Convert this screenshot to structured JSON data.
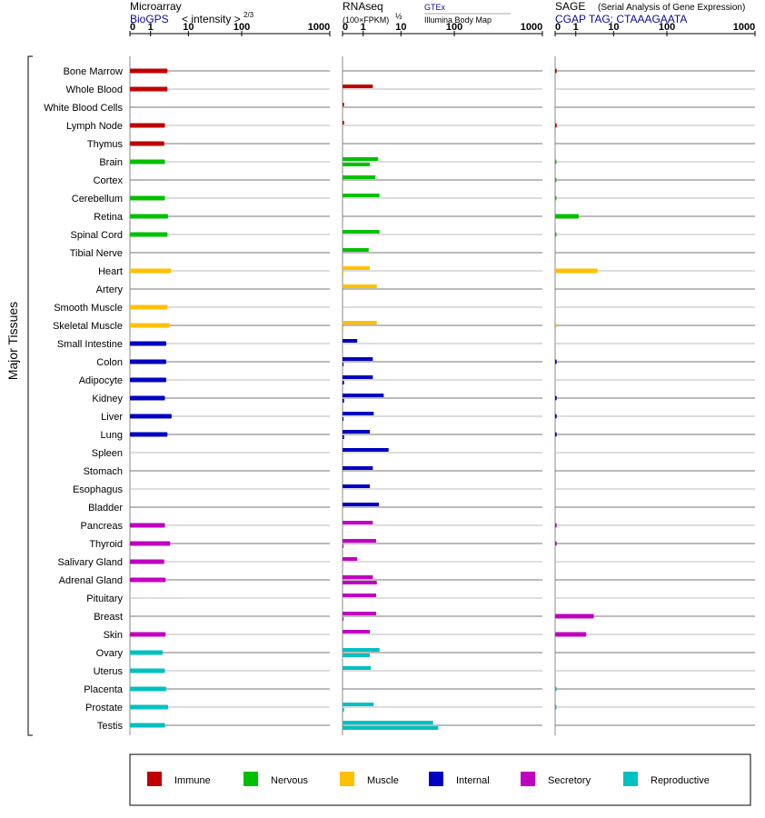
{
  "header": {
    "microarray": {
      "title": "Microarray",
      "source": "BioGPS",
      "scale_label": "< intensity >",
      "scale_exp": "2/3"
    },
    "rnaseq": {
      "title": "RNAseq",
      "scale_label": "(100×FPKM)",
      "scale_exp": "½",
      "source_1": "GTEx",
      "source_2": "Illumina Body Map"
    },
    "sage": {
      "title": "SAGE",
      "subtitle": "(Serial Analysis of Gene Expression)",
      "tag": "CGAP TAG: CTAAAGAATA"
    }
  },
  "axis_ticks": [
    "0",
    "1",
    "10",
    "100",
    "1000"
  ],
  "y_group_label": "Major Tissues",
  "legend": [
    {
      "name": "Immune",
      "color": "#c00000"
    },
    {
      "name": "Nervous",
      "color": "#00c000"
    },
    {
      "name": "Muscle",
      "color": "#ffc000"
    },
    {
      "name": "Internal",
      "color": "#0000c0"
    },
    {
      "name": "Secretory",
      "color": "#c000c0"
    },
    {
      "name": "Reproductive",
      "color": "#00c0c0"
    }
  ],
  "chart_data": {
    "type": "bar",
    "orientation": "horizontal",
    "categories": [
      "Bone Marrow",
      "Whole Blood",
      "White Blood Cells",
      "Lymph Node",
      "Thymus",
      "Brain",
      "Cortex",
      "Cerebellum",
      "Retina",
      "Spinal Cord",
      "Tibial Nerve",
      "Heart",
      "Artery",
      "Smooth Muscle",
      "Skeletal Muscle",
      "Small Intestine",
      "Colon",
      "Adipocyte",
      "Kidney",
      "Liver",
      "Lung",
      "Spleen",
      "Stomach",
      "Esophagus",
      "Bladder",
      "Pancreas",
      "Thyroid",
      "Salivary Gland",
      "Adrenal Gland",
      "Pituitary",
      "Breast",
      "Skin",
      "Ovary",
      "Uterus",
      "Placenta",
      "Prostate",
      "Testis"
    ],
    "category_groups": [
      "Immune",
      "Immune",
      "Immune",
      "Immune",
      "Immune",
      "Nervous",
      "Nervous",
      "Nervous",
      "Nervous",
      "Nervous",
      "Nervous",
      "Muscle",
      "Muscle",
      "Muscle",
      "Muscle",
      "Internal",
      "Internal",
      "Internal",
      "Internal",
      "Internal",
      "Internal",
      "Internal",
      "Internal",
      "Internal",
      "Internal",
      "Secretory",
      "Secretory",
      "Secretory",
      "Secretory",
      "Secretory",
      "Secretory",
      "Secretory",
      "Reproductive",
      "Reproductive",
      "Reproductive",
      "Reproductive",
      "Reproductive"
    ],
    "x_scale": "log",
    "xlim": [
      0,
      1000
    ],
    "panels": [
      {
        "name": "Microarray",
        "values": [
          2.8,
          2.8,
          null,
          2.4,
          2.3,
          2.4,
          null,
          2.4,
          2.9,
          2.8,
          null,
          3.5,
          null,
          2.8,
          3.2,
          2.6,
          2.6,
          2.6,
          2.4,
          3.6,
          2.8,
          null,
          null,
          null,
          null,
          2.4,
          3.3,
          2.3,
          2.5,
          null,
          null,
          2.5,
          2.1,
          2.4,
          2.6,
          2.9,
          2.4
        ]
      },
      {
        "name": "RNAseq GTEx",
        "values": [
          null,
          1.8,
          0.02,
          0.02,
          null,
          2.5,
          2.1,
          2.7,
          null,
          2.7,
          1.4,
          1.5,
          2.3,
          null,
          2.3,
          0.6,
          1.8,
          1.8,
          3.5,
          1.9,
          1.5,
          4.7,
          1.8,
          1.5,
          2.6,
          1.8,
          2.2,
          0.6,
          1.8,
          2.2,
          2.2,
          1.5,
          2.7,
          1.6,
          null,
          1.9,
          40
        ]
      },
      {
        "name": "RNAseq Illumina Body Map",
        "values": [
          null,
          null,
          null,
          null,
          null,
          1.5,
          null,
          null,
          null,
          null,
          null,
          0.01,
          null,
          null,
          0.01,
          null,
          0.01,
          0.02,
          0.02,
          0.01,
          0.02,
          null,
          null,
          null,
          null,
          null,
          0.01,
          null,
          2.3,
          null,
          0.01,
          null,
          1.5,
          null,
          null,
          0.02,
          50
        ]
      },
      {
        "name": "SAGE",
        "values": [
          0.02,
          null,
          null,
          0.02,
          null,
          0.01,
          0.01,
          0.01,
          1.2,
          0.01,
          null,
          3.8,
          null,
          null,
          0.005,
          null,
          0.02,
          null,
          0.02,
          0.02,
          0.02,
          null,
          null,
          null,
          null,
          0.02,
          0.02,
          null,
          null,
          null,
          3.0,
          1.9,
          null,
          null,
          0.01,
          0.01,
          null
        ]
      }
    ]
  }
}
